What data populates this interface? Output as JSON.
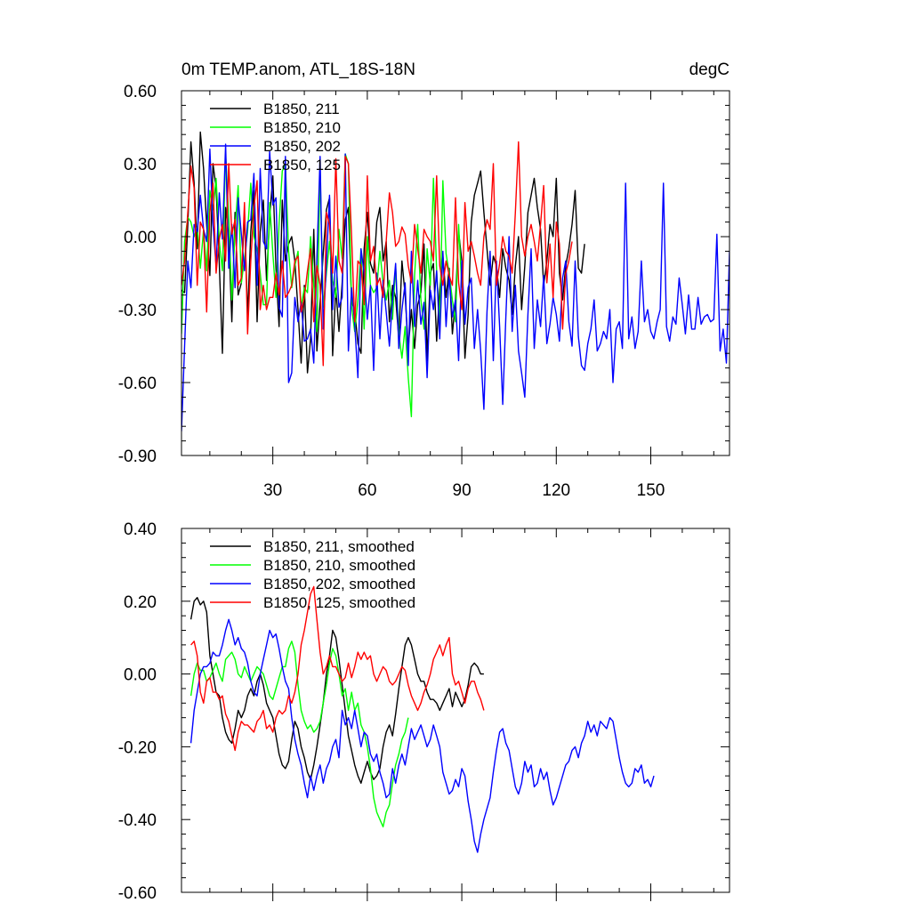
{
  "chart_data": [
    {
      "type": "line",
      "title_left": "0m TEMP.anom, ATL_18S-18N",
      "title_right": "degC",
      "xlim": [
        1,
        175
      ],
      "ylim": [
        -0.9,
        0.6
      ],
      "yticks": [
        0.6,
        0.3,
        0.0,
        -0.3,
        -0.6,
        -0.9
      ],
      "ytick_labels": [
        "0.60",
        "0.30",
        "0.00",
        "-0.30",
        "-0.60",
        "-0.90"
      ],
      "xticks": [
        30,
        60,
        90,
        120,
        150
      ],
      "xtick_labels": [
        "30",
        "60",
        "90",
        "120",
        "150"
      ],
      "legend_position": "top-left",
      "series": [
        {
          "name": "B1850, 211",
          "color": "#000000",
          "x_start": 1,
          "values": [
            -0.22,
            -0.23,
            0.05,
            0.39,
            0.22,
            -0.05,
            0.43,
            0.28,
            0.05,
            -0.16,
            0.3,
            0.2,
            -0.11,
            -0.48,
            0.12,
            0.0,
            -0.35,
            0.1,
            -0.24,
            -0.19,
            0.1,
            -0.33,
            0.02,
            0.19,
            -0.35,
            0.02,
            0.15,
            -0.18,
            0.08,
            0.25,
            -0.13,
            -0.37,
            0.15,
            -0.1,
            -0.03,
            0.0,
            -0.1,
            -0.3,
            -0.52,
            -0.2,
            -0.56,
            -0.42,
            0.03,
            -0.47,
            -0.27,
            -0.07,
            0.11,
            0.16,
            -0.49,
            -0.21,
            -0.39,
            -0.19,
            0.07,
            0.12,
            -0.27,
            -0.3,
            -0.44,
            -0.48,
            -0.05,
            0.1,
            -0.11,
            -0.15,
            0.06,
            0.12,
            -0.1,
            -0.02,
            -0.35,
            -0.2,
            -0.25,
            -0.42,
            -0.1,
            -0.24,
            -0.46,
            -0.3,
            -0.46,
            -0.28,
            -0.23,
            -0.03,
            -0.51,
            -0.15,
            -0.11,
            -0.43,
            -0.22,
            -0.08,
            -0.25,
            -0.13,
            -0.4,
            -0.26,
            0.02,
            -0.1,
            -0.5,
            -0.32,
            0.06,
            0.17,
            0.22,
            0.27,
            0.1,
            -0.05,
            -0.2,
            -0.08,
            -0.12,
            -0.25,
            -0.05,
            -0.13,
            -0.18,
            -0.32,
            -0.12,
            0.0,
            -0.3,
            -0.12,
            0.1,
            0.17,
            0.24,
            0.12,
            0.03,
            -0.2,
            -0.1,
            0.05,
            0.0,
            0.24,
            -0.15,
            -0.26,
            -0.12,
            -0.05,
            0.05,
            0.19,
            -0.13,
            -0.15,
            -0.03
          ]
        },
        {
          "name": "B1850, 210",
          "color": "#00ff00",
          "x_start": 1,
          "values": [
            -0.4,
            -0.02,
            0.08,
            0.06,
            0.0,
            0.04,
            -0.13,
            0.03,
            -0.14,
            0.19,
            0.11,
            0.24,
            -0.02,
            -0.14,
            0.34,
            0.08,
            -0.26,
            0.03,
            0.21,
            -0.19,
            -0.09,
            0.02,
            0.22,
            0.0,
            -0.05,
            -0.15,
            -0.28,
            -0.28,
            0.14,
            -0.07,
            -0.25,
            0.05,
            0.27,
            0.3,
            -0.06,
            -0.21,
            -0.12,
            -0.06,
            -0.29,
            -0.21,
            -0.23,
            0.0,
            -0.2,
            -0.39,
            0.27,
            -0.29,
            -0.15,
            -0.02,
            -0.18,
            -0.25,
            0.03,
            -0.09,
            0.34,
            0.3,
            -0.29,
            -0.39,
            -0.26,
            -0.05,
            -0.38,
            0.0,
            -0.2,
            -0.23,
            -0.21,
            -0.06,
            -0.19,
            -0.26,
            -0.18,
            -0.34,
            -0.12,
            -0.4,
            -0.5,
            -0.37,
            -0.58,
            -0.74,
            -0.16,
            0.05,
            -0.26,
            -0.38,
            -0.05,
            -0.2,
            0.24,
            -0.14,
            -0.37,
            0.23,
            -0.07,
            -0.15,
            -0.26,
            -0.35,
            0.05,
            -0.21
          ]
        },
        {
          "name": "B1850, 202",
          "color": "#0000ff",
          "x_start": 1,
          "values": [
            -0.8,
            -0.45,
            -0.1,
            -0.21,
            0.05,
            0.02,
            0.17,
            0.03,
            -0.02,
            0.36,
            0.05,
            -0.12,
            0.18,
            -0.01,
            0.38,
            -0.13,
            0.05,
            -0.21,
            0.16,
            0.01,
            -0.14,
            0.06,
            0.07,
            0.26,
            -0.2,
            0.28,
            -0.02,
            -0.05,
            0.35,
            0.13,
            0.16,
            -0.29,
            -0.33,
            0.33,
            -0.6,
            -0.56,
            -0.25,
            -0.35,
            -0.27,
            -0.43,
            -0.42,
            -0.38,
            -0.52,
            -0.09,
            0.33,
            -0.38,
            -0.11,
            0.17,
            -0.3,
            -0.08,
            -0.29,
            -0.25,
            0.34,
            -0.47,
            -0.21,
            -0.36,
            -0.58,
            -0.05,
            -0.15,
            -0.34,
            -0.2,
            -0.55,
            -0.15,
            -0.42,
            -0.18,
            -0.31,
            -0.45,
            -0.26,
            -0.11,
            -0.46,
            -0.3,
            -0.19,
            -0.53,
            -0.06,
            -0.37,
            -0.18,
            -0.36,
            -0.27,
            -0.58,
            -0.22,
            -0.3,
            -0.14,
            -0.42,
            -0.06,
            -0.37,
            -0.16,
            -0.33,
            -0.26,
            -0.51,
            -0.1,
            -0.36,
            -0.21,
            -0.17,
            -0.46,
            -0.3,
            -0.47,
            -0.71,
            -0.31,
            -0.06,
            -0.51,
            -0.1,
            -0.37,
            -0.69,
            -0.33,
            0.0,
            -0.39,
            -0.2,
            -0.47,
            -0.56,
            -0.66,
            -0.32,
            -0.05,
            -0.46,
            -0.26,
            -0.37,
            -0.16,
            -0.44,
            -0.36,
            -0.25,
            -0.32,
            -0.43,
            -0.17,
            -0.1,
            -0.35,
            -0.45,
            -0.1,
            -0.41,
            -0.53,
            -0.55,
            -0.44,
            -0.38,
            -0.26,
            -0.47,
            -0.44,
            -0.39,
            -0.42,
            -0.3,
            -0.6,
            -0.38,
            -0.35,
            -0.46,
            0.22,
            -0.42,
            -0.33,
            -0.46,
            -0.39,
            -0.1,
            -0.35,
            -0.3,
            -0.39,
            -0.42,
            -0.35,
            -0.3,
            0.22,
            -0.37,
            -0.43,
            -0.33,
            -0.36,
            -0.17,
            -0.28,
            -0.4,
            -0.24,
            -0.38,
            -0.38,
            -0.25,
            -0.36,
            -0.33,
            -0.32,
            -0.35,
            -0.34,
            0.01,
            -0.47,
            -0.38,
            -0.52,
            -0.06
          ]
        },
        {
          "name": "B1850, 125",
          "color": "#ff0000",
          "x_start": 1,
          "values": [
            -0.2,
            -0.1,
            0.1,
            0.29,
            0.2,
            -0.2,
            0.06,
            0.03,
            -0.31,
            0.1,
            0.22,
            -0.15,
            -0.01,
            0.05,
            -0.1,
            0.3,
            0.01,
            0.07,
            -0.2,
            -0.17,
            0.14,
            -0.4,
            -0.1,
            0.12,
            0.23,
            -0.3,
            -0.2,
            -0.3,
            -0.25,
            -0.25,
            -0.15,
            -0.24,
            -0.1,
            -0.25,
            -0.23,
            -0.2,
            -0.1,
            -0.08,
            -0.31,
            -0.25,
            -0.14,
            -0.05,
            -0.35,
            -0.12,
            -0.2,
            -0.53,
            0.1,
            0.05,
            -0.15,
            0.32,
            -0.1,
            -0.15,
            0.33,
            0.3,
            0.0,
            -0.35,
            -0.1,
            -0.12,
            -0.28,
            0.25,
            -0.1,
            -0.04,
            -0.2,
            -0.17,
            -0.25,
            -0.02,
            0.18,
            0.1,
            -0.04,
            -0.02,
            0.04,
            0.01,
            -0.12,
            -0.19,
            0.05,
            -0.05,
            -0.15,
            0.03,
            0.0,
            -0.02,
            -0.1,
            0.25,
            -0.12,
            -0.2,
            -0.1,
            -0.16,
            -0.2,
            0.16,
            -0.19,
            -0.3,
            0.14,
            -0.06,
            -0.02,
            -0.08,
            -0.15,
            -0.2,
            0.0,
            0.07,
            0.03,
            0.3,
            -0.2,
            -0.11,
            0.0,
            -0.06,
            -0.08,
            -0.15,
            0.1,
            0.39,
            0.0,
            -0.08,
            0.0,
            0.05,
            -0.02,
            -0.1,
            0.05,
            0.21,
            -0.19,
            -0.03,
            -0.25,
            0.06,
            -0.03,
            -0.38,
            -0.15,
            -0.1,
            -0.02
          ]
        }
      ]
    },
    {
      "type": "line",
      "xlim": [
        1,
        175
      ],
      "ylim": [
        -0.6,
        0.4
      ],
      "yticks": [
        0.4,
        0.2,
        0.0,
        -0.2,
        -0.4,
        -0.6
      ],
      "ytick_labels": [
        "0.40",
        "0.20",
        "0.00",
        "-0.20",
        "-0.40",
        "-0.60"
      ],
      "xticks": [
        30,
        60,
        90,
        120,
        150
      ],
      "legend_position": "top-left",
      "series": [
        {
          "name": "B1850, 211, smoothed",
          "color": "#000000",
          "x_start": 4,
          "values": [
            0.15,
            0.2,
            0.21,
            0.19,
            0.2,
            0.17,
            0.05,
            0.0,
            -0.05,
            -0.06,
            -0.12,
            -0.16,
            -0.18,
            -0.19,
            -0.15,
            -0.1,
            -0.12,
            -0.1,
            -0.06,
            -0.04,
            -0.06,
            -0.02,
            0.0,
            -0.03,
            -0.08,
            -0.1,
            -0.12,
            -0.17,
            -0.22,
            -0.25,
            -0.26,
            -0.24,
            -0.18,
            -0.13,
            -0.15,
            -0.2,
            -0.23,
            -0.27,
            -0.29,
            -0.25,
            -0.2,
            -0.14,
            -0.08,
            0.0,
            0.05,
            0.12,
            0.1,
            0.04,
            -0.03,
            -0.1,
            -0.17,
            -0.21,
            -0.25,
            -0.28,
            -0.3,
            -0.27,
            -0.24,
            -0.27,
            -0.29,
            -0.28,
            -0.26,
            -0.2,
            -0.16,
            -0.14,
            -0.17,
            -0.11,
            -0.04,
            0.02,
            0.08,
            0.1,
            0.08,
            0.04,
            0.0,
            -0.02,
            -0.02,
            -0.05,
            -0.07,
            -0.07,
            -0.08,
            -0.1,
            -0.08,
            -0.06,
            -0.04,
            -0.09,
            -0.05,
            -0.07,
            -0.09,
            -0.07,
            -0.03,
            0.02,
            0.03,
            0.02,
            0.0,
            0.0
          ]
        },
        {
          "name": "B1850, 210, smoothed",
          "color": "#00ff00",
          "x_start": 4,
          "values": [
            -0.06,
            0.0,
            0.03,
            0.01,
            0.01,
            -0.02,
            -0.01,
            0.01,
            0.03,
            0.0,
            -0.02,
            0.04,
            0.05,
            0.06,
            0.04,
            0.0,
            -0.01,
            0.02,
            0.0,
            -0.02,
            0.0,
            0.02,
            0.01,
            0.0,
            -0.03,
            -0.06,
            -0.07,
            -0.04,
            -0.01,
            0.02,
            0.02,
            0.07,
            0.09,
            0.06,
            -0.03,
            -0.1,
            -0.13,
            -0.15,
            -0.14,
            -0.16,
            -0.15,
            -0.13,
            -0.08,
            -0.03,
            0.03,
            0.07,
            0.05,
            0.0,
            -0.06,
            -0.04,
            -0.1,
            -0.05,
            -0.1,
            -0.08,
            -0.14,
            -0.16,
            -0.2,
            -0.26,
            -0.34,
            -0.38,
            -0.4,
            -0.42,
            -0.38,
            -0.36,
            -0.3,
            -0.25,
            -0.22,
            -0.18,
            -0.16,
            -0.12
          ]
        },
        {
          "name": "B1850, 202, smoothed",
          "color": "#0000ff",
          "x_start": 4,
          "values": [
            -0.19,
            -0.1,
            -0.05,
            0.0,
            0.02,
            0.02,
            0.03,
            0.06,
            0.05,
            0.05,
            0.08,
            0.12,
            0.15,
            0.12,
            0.08,
            0.1,
            0.07,
            0.06,
            0.03,
            -0.02,
            -0.05,
            -0.06,
            0.0,
            0.04,
            0.08,
            0.12,
            0.1,
            0.11,
            0.07,
            0.02,
            -0.02,
            -0.04,
            -0.12,
            -0.18,
            -0.22,
            -0.25,
            -0.3,
            -0.34,
            -0.28,
            -0.32,
            -0.28,
            -0.25,
            -0.3,
            -0.26,
            -0.24,
            -0.2,
            -0.18,
            -0.23,
            -0.1,
            -0.14,
            -0.12,
            -0.15,
            -0.1,
            -0.15,
            -0.2,
            -0.16,
            -0.17,
            -0.22,
            -0.24,
            -0.22,
            -0.27,
            -0.3,
            -0.34,
            -0.33,
            -0.26,
            -0.3,
            -0.25,
            -0.22,
            -0.25,
            -0.2,
            -0.15,
            -0.18,
            -0.16,
            -0.14,
            -0.17,
            -0.2,
            -0.18,
            -0.14,
            -0.17,
            -0.2,
            -0.27,
            -0.3,
            -0.33,
            -0.32,
            -0.29,
            -0.31,
            -0.26,
            -0.28,
            -0.35,
            -0.4,
            -0.46,
            -0.49,
            -0.44,
            -0.4,
            -0.37,
            -0.34,
            -0.27,
            -0.21,
            -0.16,
            -0.15,
            -0.19,
            -0.21,
            -0.26,
            -0.31,
            -0.33,
            -0.3,
            -0.24,
            -0.27,
            -0.25,
            -0.31,
            -0.3,
            -0.26,
            -0.29,
            -0.27,
            -0.32,
            -0.36,
            -0.34,
            -0.31,
            -0.28,
            -0.25,
            -0.24,
            -0.21,
            -0.2,
            -0.23,
            -0.19,
            -0.17,
            -0.13,
            -0.16,
            -0.14,
            -0.17,
            -0.13,
            -0.14,
            -0.15,
            -0.12,
            -0.13,
            -0.18,
            -0.23,
            -0.27,
            -0.3,
            -0.31,
            -0.3,
            -0.26,
            -0.27,
            -0.25,
            -0.3,
            -0.29,
            -0.31,
            -0.28
          ]
        },
        {
          "name": "B1850, 125, smoothed",
          "color": "#ff0000",
          "x_start": 4,
          "values": [
            0.08,
            0.09,
            0.05,
            -0.05,
            -0.08,
            -0.02,
            -0.01,
            -0.05,
            -0.05,
            -0.07,
            -0.06,
            -0.11,
            -0.13,
            -0.17,
            -0.21,
            -0.16,
            -0.13,
            -0.14,
            -0.14,
            -0.15,
            -0.16,
            -0.13,
            -0.12,
            -0.1,
            -0.15,
            -0.14,
            -0.16,
            -0.12,
            -0.1,
            -0.11,
            -0.1,
            -0.06,
            -0.08,
            -0.05,
            0.0,
            0.08,
            0.12,
            0.17,
            0.22,
            0.24,
            0.15,
            0.06,
            0.0,
            0.02,
            0.05,
            0.02,
            0.02,
            0.0,
            -0.02,
            -0.01,
            0.03,
            -0.01,
            0.02,
            0.06,
            0.04,
            0.06,
            0.04,
            0.05,
            0.0,
            -0.02,
            0.0,
            0.02,
            0.01,
            -0.02,
            -0.03,
            -0.02,
            0.0,
            0.02,
            0.01,
            -0.03,
            -0.06,
            -0.08,
            -0.1,
            -0.08,
            -0.05,
            -0.03,
            0.0,
            0.04,
            0.06,
            0.08,
            0.05,
            0.08,
            0.1,
            0.0,
            -0.03,
            -0.02,
            -0.05,
            -0.08,
            -0.04,
            -0.02,
            -0.02,
            -0.05,
            -0.07,
            -0.1
          ]
        }
      ]
    }
  ]
}
